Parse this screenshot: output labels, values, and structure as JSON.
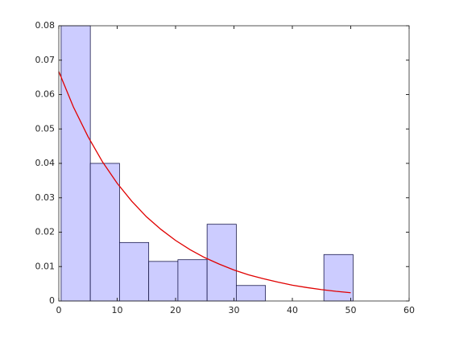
{
  "chart_data": {
    "type": "histogram",
    "bins": [
      0.4,
      5.4,
      10.4,
      15.4,
      20.4,
      25.4,
      30.4,
      35.4,
      40.4,
      45.4,
      50.4
    ],
    "values": [
      0.08,
      0.04,
      0.017,
      0.0115,
      0.012,
      0.0223,
      0.0045,
      0,
      0,
      0.0135
    ],
    "color": "#ccccff",
    "edgecolor": "#1a1a4d",
    "overlay": {
      "type": "line",
      "color": "#e00000",
      "x": [
        0,
        2.5,
        5,
        7.5,
        10,
        12.5,
        15,
        17.5,
        20,
        22.5,
        25,
        27.5,
        30,
        32.5,
        35,
        37.5,
        40,
        42.5,
        45,
        47.5,
        50
      ],
      "values": [
        0.0667,
        0.0564,
        0.0478,
        0.0404,
        0.0342,
        0.029,
        0.0245,
        0.0208,
        0.0176,
        0.0149,
        0.0126,
        0.0107,
        0.009,
        0.0076,
        0.0065,
        0.0055,
        0.0046,
        0.0039,
        0.0033,
        0.0028,
        0.0024
      ]
    },
    "xlim": [
      0,
      60
    ],
    "xticks": [
      0,
      10,
      20,
      30,
      40,
      50,
      60
    ],
    "ylim": [
      0,
      0.08
    ],
    "yticks": [
      0,
      0.01,
      0.02,
      0.03,
      0.04,
      0.05,
      0.06,
      0.07,
      0.08
    ]
  }
}
